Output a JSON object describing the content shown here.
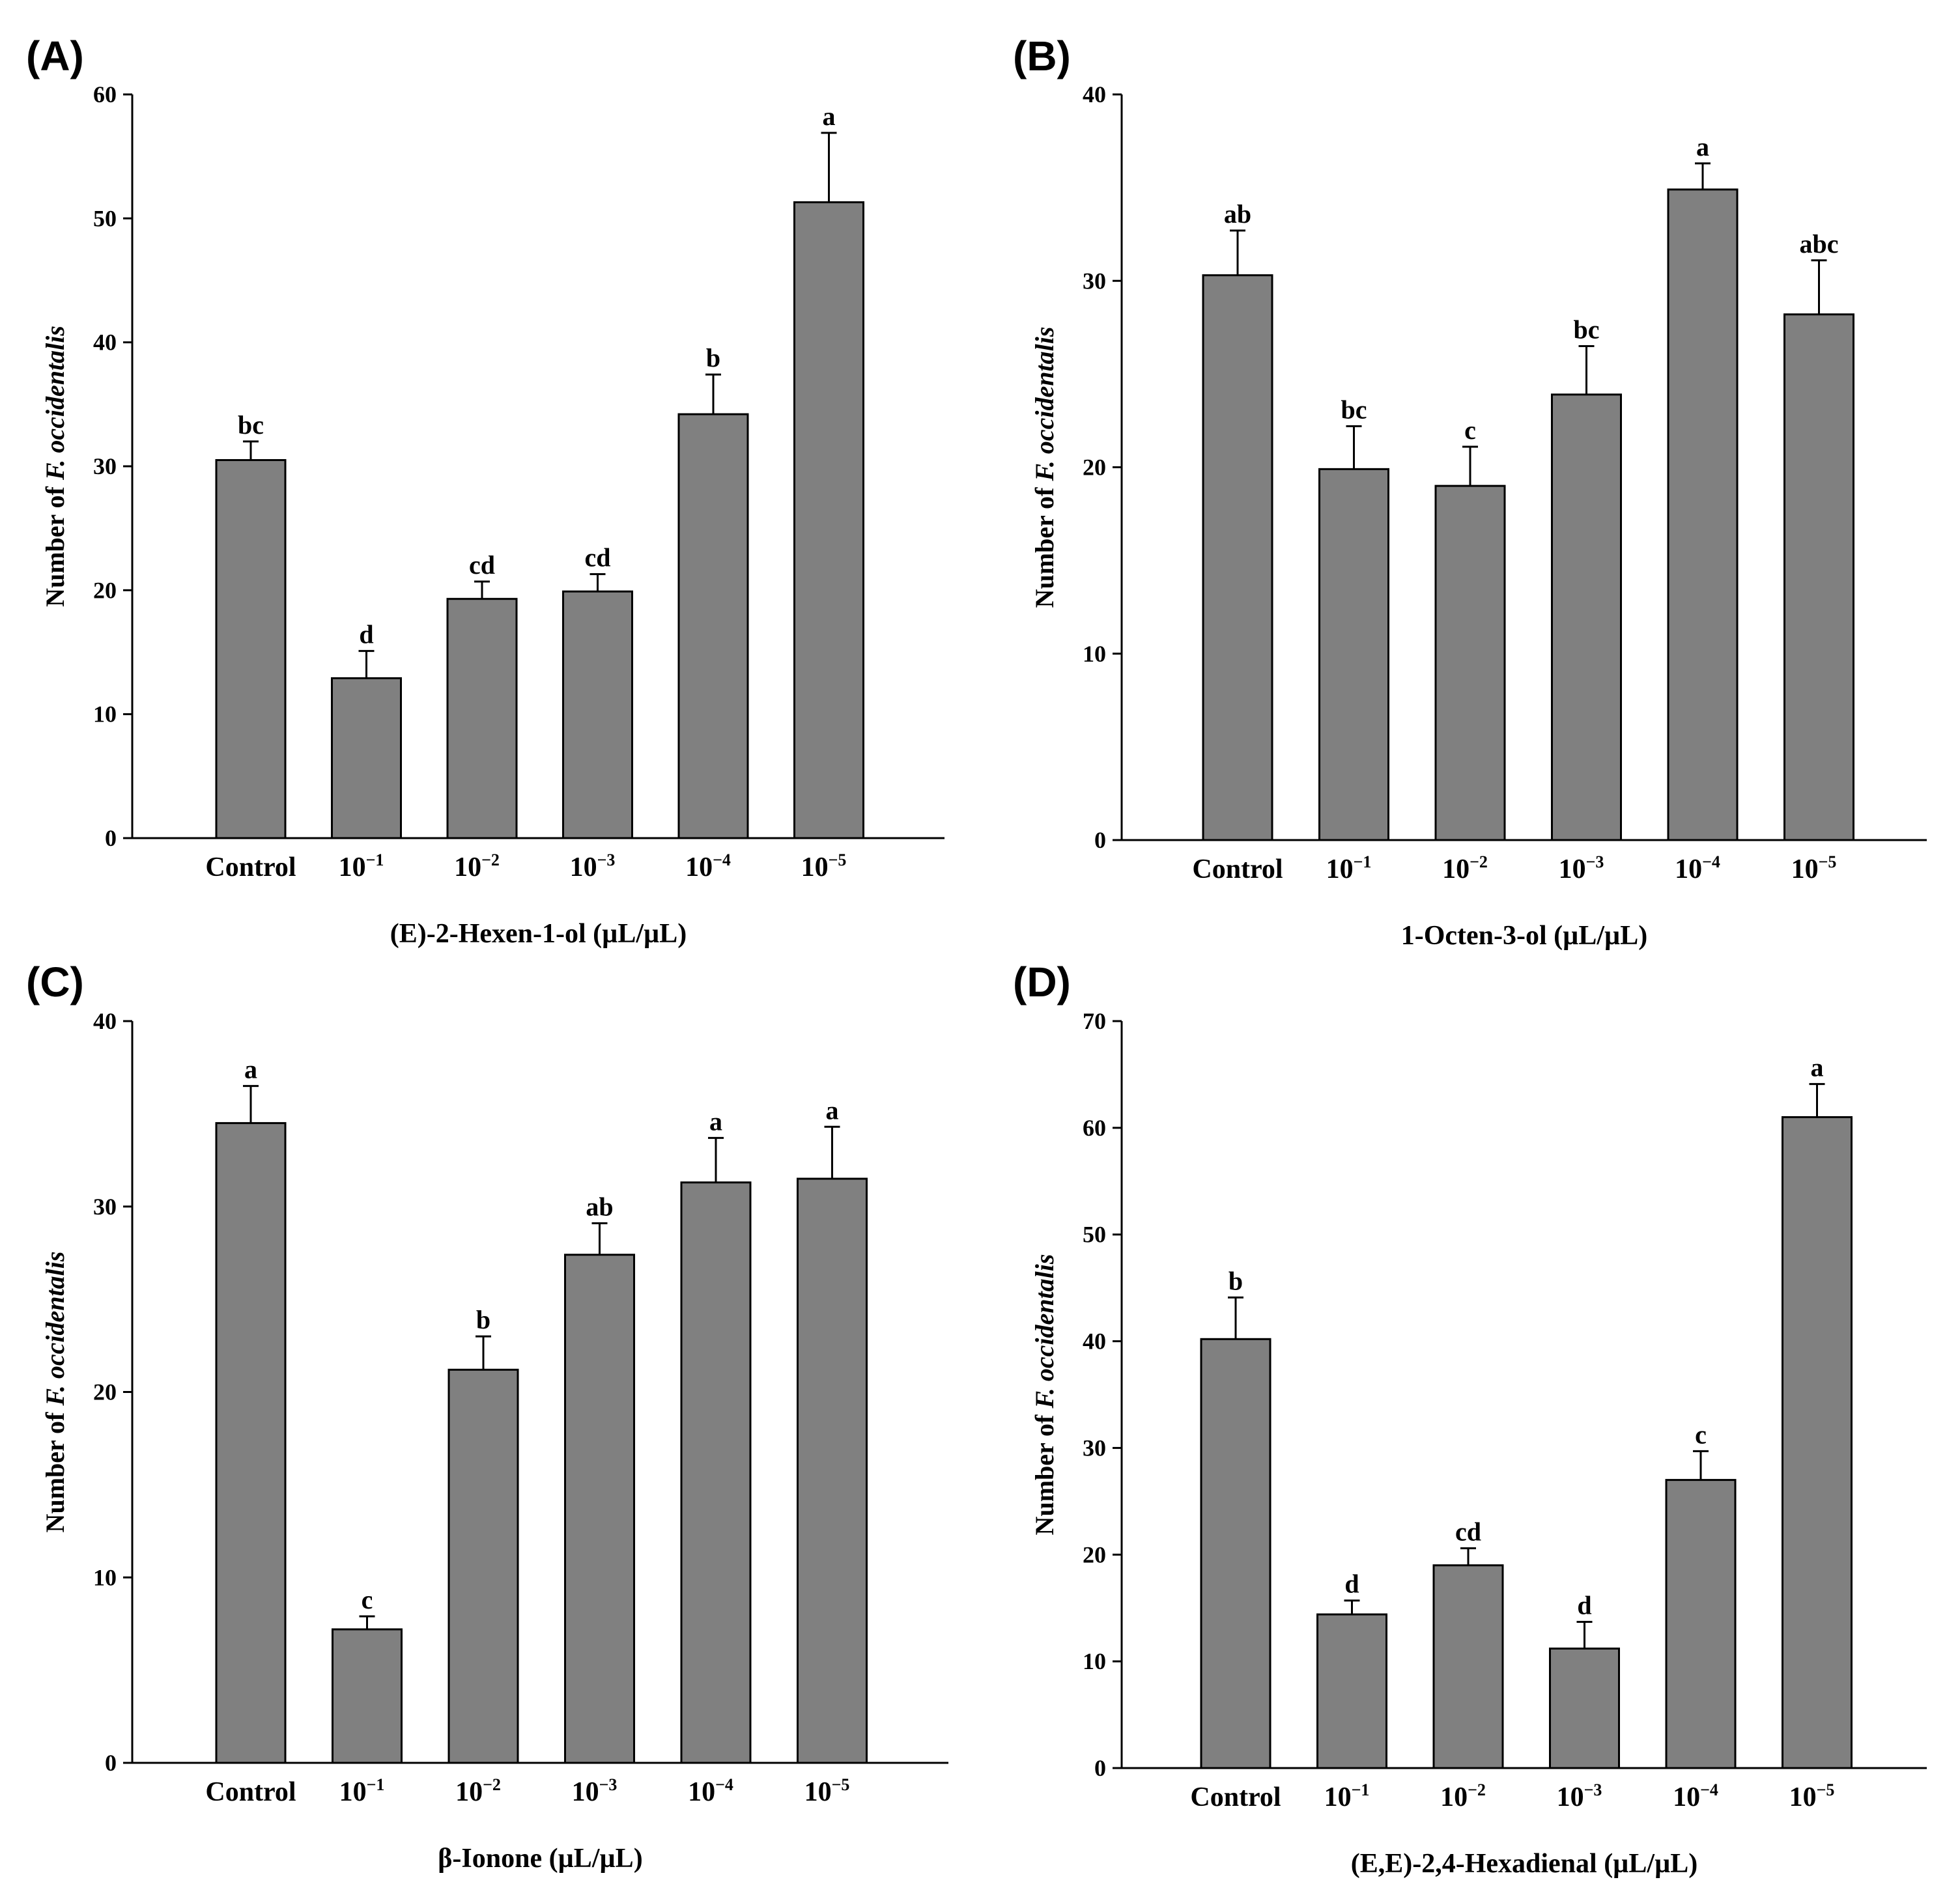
{
  "chart_data": [
    {
      "panel": "(A)",
      "type": "bar",
      "categories": [
        "Control",
        "10^-1",
        "10^-2",
        "10^-3",
        "10^-4",
        "10^-5"
      ],
      "values": [
        30.5,
        12.9,
        19.3,
        19.9,
        34.2,
        51.3
      ],
      "errors": [
        1.5,
        2.2,
        1.4,
        1.4,
        3.2,
        5.6
      ],
      "significance": [
        "bc",
        "d",
        "cd",
        "cd",
        "b",
        "a"
      ],
      "xlabel": "(E)-2-Hexen-1-ol (µL/µL)",
      "ylabel_prefix": "Number of ",
      "ylabel_italic": "F. occidentalis",
      "ylim": [
        0,
        60
      ],
      "yticks": [
        0,
        10,
        20,
        30,
        40,
        50,
        60
      ],
      "bar_color": "#808080"
    },
    {
      "panel": "(B)",
      "type": "bar",
      "categories": [
        "Control",
        "10^-1",
        "10^-2",
        "10^-3",
        "10^-4",
        "10^-5"
      ],
      "values": [
        30.3,
        19.9,
        19.0,
        23.9,
        34.9,
        28.2
      ],
      "errors": [
        2.4,
        2.3,
        2.1,
        2.6,
        1.4,
        2.9
      ],
      "significance": [
        "ab",
        "bc",
        "c",
        "bc",
        "a",
        "abc"
      ],
      "xlabel": "1-Octen-3-ol (µL/µL)",
      "ylabel_prefix": "Number of ",
      "ylabel_italic": "F. occidentalis",
      "ylim": [
        0,
        40
      ],
      "yticks": [
        0,
        10,
        20,
        30,
        40
      ],
      "bar_color": "#808080"
    },
    {
      "panel": "(C)",
      "type": "bar",
      "categories": [
        "Control",
        "10^-1",
        "10^-2",
        "10^-3",
        "10^-4",
        "10^-5"
      ],
      "values": [
        34.5,
        7.2,
        21.2,
        27.4,
        31.3,
        31.5
      ],
      "errors": [
        2.0,
        0.7,
        1.8,
        1.7,
        2.4,
        2.8
      ],
      "significance": [
        "a",
        "c",
        "b",
        "ab",
        "a",
        "a"
      ],
      "xlabel": "β-Ionone (µL/µL)",
      "ylabel_prefix": "Number of ",
      "ylabel_italic": "F. occidentalis",
      "ylim": [
        0,
        40
      ],
      "yticks": [
        0,
        10,
        20,
        30,
        40
      ],
      "bar_color": "#808080"
    },
    {
      "panel": "(D)",
      "type": "bar",
      "categories": [
        "Control",
        "10^-1",
        "10^-2",
        "10^-3",
        "10^-4",
        "10^-5"
      ],
      "values": [
        40.2,
        14.4,
        19.0,
        11.2,
        27.0,
        61.0
      ],
      "errors": [
        3.9,
        1.3,
        1.6,
        2.5,
        2.7,
        3.1
      ],
      "significance": [
        "b",
        "d",
        "cd",
        "d",
        "c",
        "a"
      ],
      "xlabel": "(E,E)-2,4-Hexadienal (µL/µL)",
      "ylabel_prefix": "Number of ",
      "ylabel_italic": "F. occidentalis",
      "ylim": [
        0,
        70
      ],
      "yticks": [
        0,
        10,
        20,
        30,
        40,
        50,
        60,
        70
      ],
      "bar_color": "#808080"
    }
  ]
}
